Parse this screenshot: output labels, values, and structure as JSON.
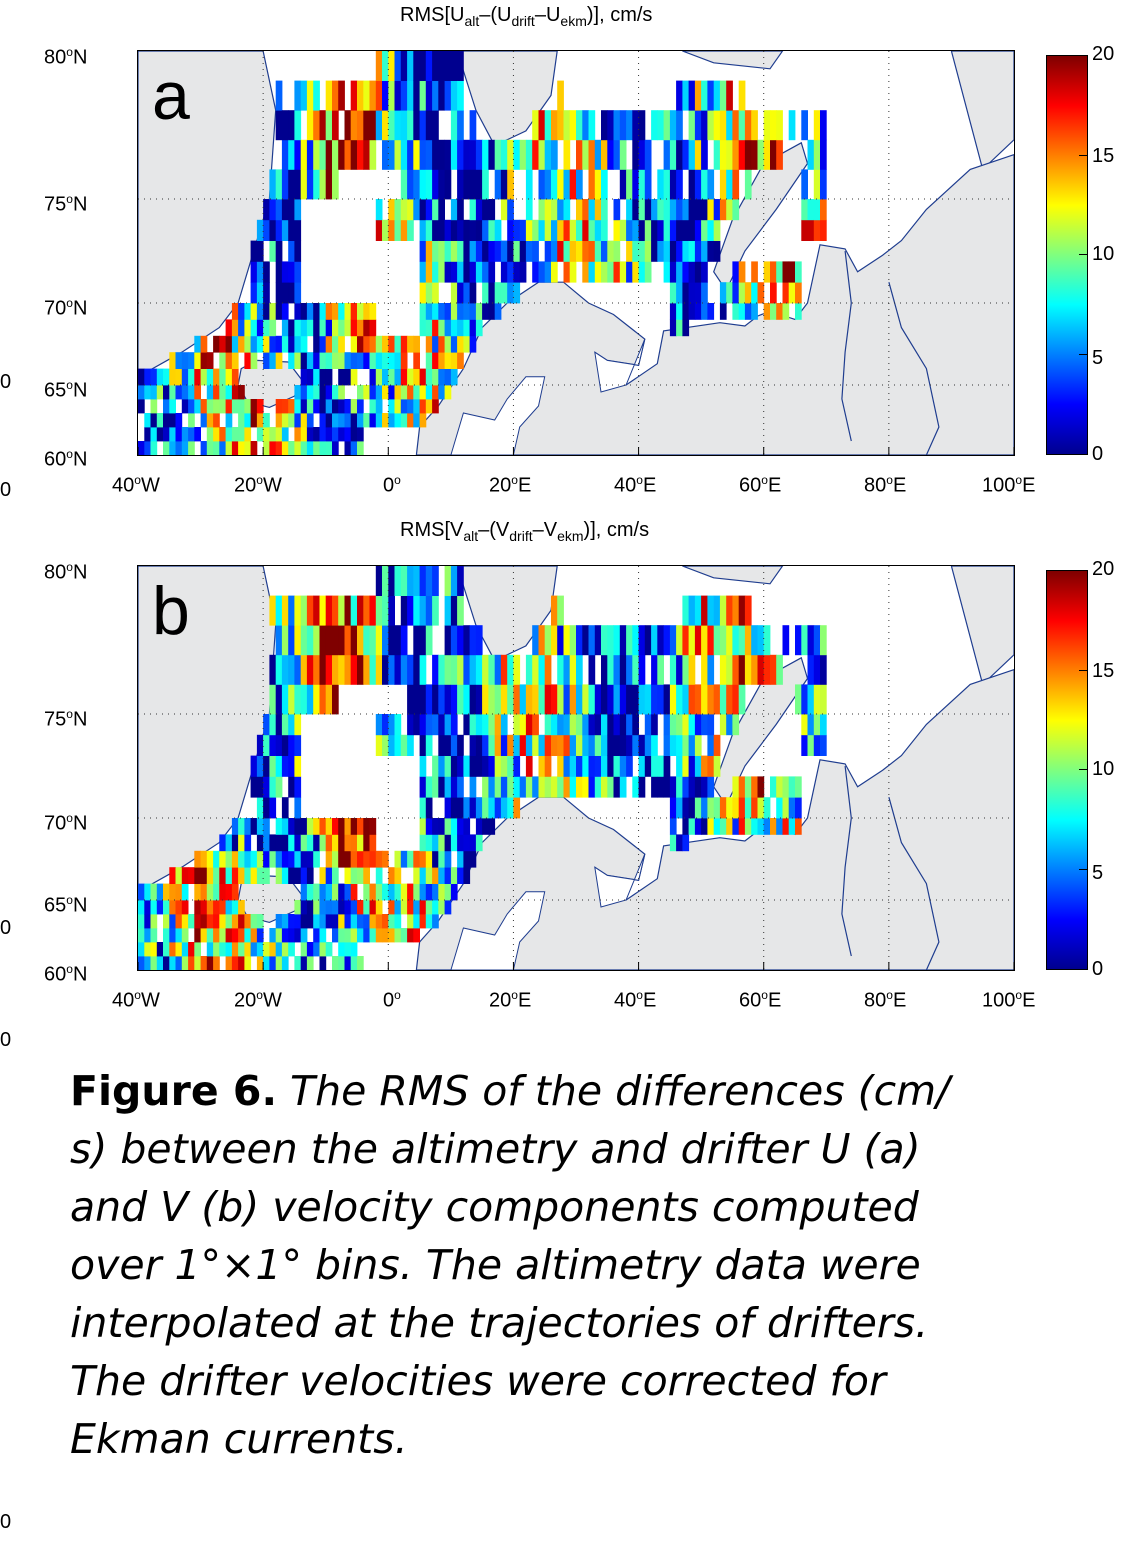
{
  "figure": {
    "caption_label": "Figure 6",
    "caption_lines": [
      " The RMS of the differences (cm/",
      "s) between the altimetry and drifter U (a)",
      "and V (b) velocity components computed",
      "over 1°×1° bins. The altimetry data were",
      "interpolated at the trajectories of drifters.",
      "The drifter velocities were corrected for",
      "Ekman currents."
    ]
  },
  "panels": [
    {
      "label": "a",
      "title": {
        "base1": "RMS[U",
        "s1": "alt",
        "base2": "–(U",
        "s2": "drift",
        "base3": "–U",
        "s3": "ekm",
        "base4": ")], cm/s"
      }
    },
    {
      "label": "b",
      "title": {
        "base1": "RMS[V",
        "s1": "alt",
        "base2": "–(V",
        "s2": "drift",
        "base3": "–V",
        "s3": "ekm",
        "base4": ")], cm/s"
      }
    }
  ],
  "axes": {
    "lat_ticks": [
      {
        "deg": "80",
        "sup": "o",
        "hem": "N"
      },
      {
        "deg": "75",
        "sup": "o",
        "hem": "N"
      },
      {
        "deg": "70",
        "sup": "o",
        "hem": "N"
      },
      {
        "deg": "65",
        "sup": "o",
        "hem": "N"
      },
      {
        "deg": "60",
        "sup": "o",
        "hem": "N"
      }
    ],
    "lon_ticks": [
      {
        "deg": "40",
        "sup": "o",
        "hem": "W"
      },
      {
        "deg": "20",
        "sup": "o",
        "hem": "W"
      },
      {
        "deg": "0",
        "sup": "o",
        "hem": ""
      },
      {
        "deg": "20",
        "sup": "o",
        "hem": "E"
      },
      {
        "deg": "40",
        "sup": "o",
        "hem": "E"
      },
      {
        "deg": "60",
        "sup": "o",
        "hem": "E"
      },
      {
        "deg": "80",
        "sup": "o",
        "hem": "E"
      },
      {
        "deg": "100",
        "sup": "o",
        "hem": "E"
      }
    ],
    "lat_range": [
      60,
      80
    ],
    "lon_range": [
      -40,
      100
    ]
  },
  "colorbar": {
    "ticks": [
      "20",
      "15",
      "10",
      "5",
      "0"
    ],
    "range": [
      0,
      20
    ],
    "colormap": "jet"
  },
  "margin_ticks": [
    "0",
    "0",
    "0",
    "0",
    "0"
  ],
  "colors": {
    "land": "#e6e7e8",
    "coast": "#1f3d8f"
  }
}
